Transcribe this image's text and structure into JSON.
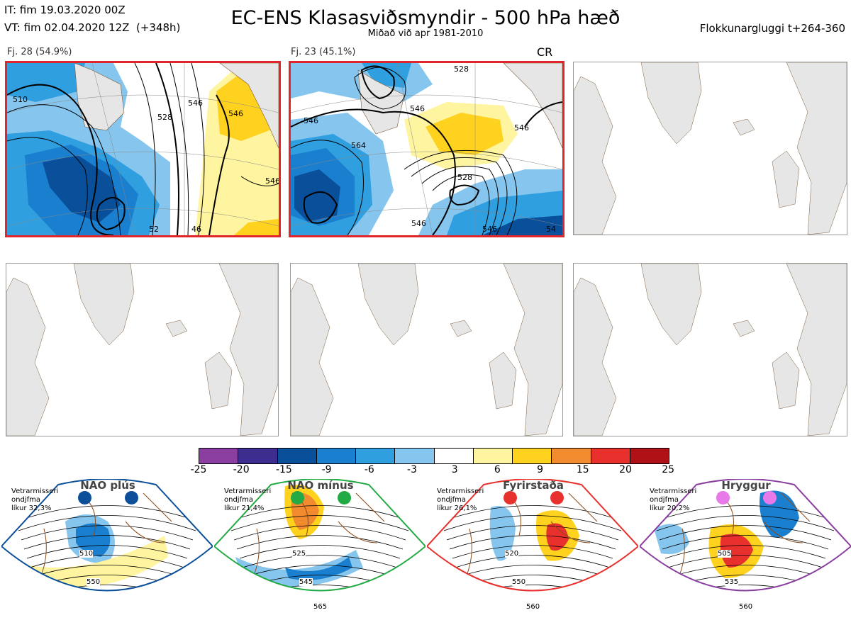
{
  "header": {
    "it_line": "IT: fim 19.03.2020 00Z",
    "vt_line": "VT: fim 02.04.2020 12Z  (+348h)",
    "title": "EC-ENS Klasasviðsmyndir - 500 hPa hæð",
    "subtitle": "Miðað við apr 1981-2010",
    "window": "Flokkunargluggi t+264-360"
  },
  "panels": [
    {
      "label": "Fj. 28 (54.9%)",
      "tag": "",
      "selected": true,
      "contours": [
        "510",
        "528",
        "546",
        "546",
        "546",
        "52",
        "46"
      ]
    },
    {
      "label": "Fj. 23 (45.1%)",
      "tag": "CR",
      "selected": true,
      "contours": [
        "546",
        "564",
        "546",
        "528",
        "546",
        "546",
        "528",
        "54",
        "546"
      ]
    },
    {
      "label": "",
      "tag": "",
      "selected": false
    },
    {
      "label": "",
      "tag": "",
      "selected": false
    },
    {
      "label": "",
      "tag": "",
      "selected": false
    },
    {
      "label": "",
      "tag": "",
      "selected": false
    }
  ],
  "colorbar": {
    "ticks": [
      "-25",
      "-20",
      "-15",
      "-9",
      "-6",
      "-3",
      "3",
      "6",
      "9",
      "15",
      "20",
      "25"
    ],
    "colors": [
      "#8a3fa0",
      "#3c2d8f",
      "#0a4f9a",
      "#1b7fcf",
      "#2f9fe0",
      "#86c6ee",
      "#ffffff",
      "#fff4a0",
      "#ffd21f",
      "#f28a2e",
      "#e8302c",
      "#b01116"
    ]
  },
  "regimes": [
    {
      "title": "NAO plús",
      "note": "Vetrarmisseri\nondjfma\nlíkur 32,3%",
      "border": "#0b4f9a",
      "dot": "#0b4f9a",
      "contours": [
        "510",
        "550"
      ]
    },
    {
      "title": "NAO mínus",
      "note": "Vetrarmisseri\nondjfma\nlíkur 21,4%",
      "border": "#22aa44",
      "dot": "#22aa44",
      "contours": [
        "525",
        "545",
        "565"
      ]
    },
    {
      "title": "Fyrirstaða",
      "note": "Vetrarmisseri\nondjfma\nlíkur 26,1%",
      "border": "#e8302c",
      "dot": "#e8302c",
      "contours": [
        "520",
        "550",
        "560"
      ]
    },
    {
      "title": "Hryggur",
      "note": "Vetrarmisseri\nondjfma\nlíkur 20,2%",
      "border": "#8a3fa0",
      "dot": "#e879e8",
      "contours": [
        "505",
        "535",
        "560"
      ]
    }
  ]
}
